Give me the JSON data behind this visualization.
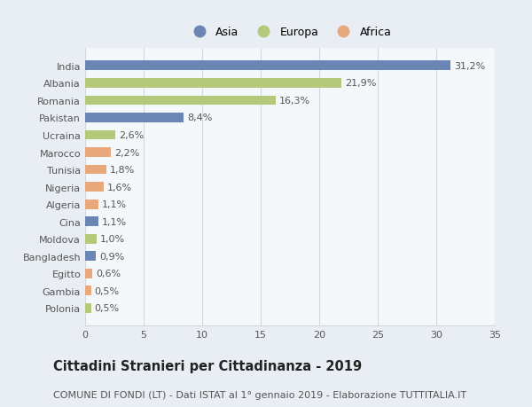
{
  "categories": [
    "Polonia",
    "Gambia",
    "Egitto",
    "Bangladesh",
    "Moldova",
    "Cina",
    "Algeria",
    "Nigeria",
    "Tunisia",
    "Marocco",
    "Ucraina",
    "Pakistan",
    "Romania",
    "Albania",
    "India"
  ],
  "values": [
    0.5,
    0.5,
    0.6,
    0.9,
    1.0,
    1.1,
    1.1,
    1.6,
    1.8,
    2.2,
    2.6,
    8.4,
    16.3,
    21.9,
    31.2
  ],
  "labels": [
    "0,5%",
    "0,5%",
    "0,6%",
    "0,9%",
    "1,0%",
    "1,1%",
    "1,1%",
    "1,6%",
    "1,8%",
    "2,2%",
    "2,6%",
    "8,4%",
    "16,3%",
    "21,9%",
    "31,2%"
  ],
  "continents": [
    "Europa",
    "Africa",
    "Africa",
    "Asia",
    "Europa",
    "Asia",
    "Africa",
    "Africa",
    "Africa",
    "Africa",
    "Europa",
    "Asia",
    "Europa",
    "Europa",
    "Asia"
  ],
  "colors": {
    "Asia": "#6b85b5",
    "Europa": "#b5c97a",
    "Africa": "#e8a87c"
  },
  "xlim": [
    0,
    35
  ],
  "xticks": [
    0,
    5,
    10,
    15,
    20,
    25,
    30,
    35
  ],
  "title": "Cittadini Stranieri per Cittadinanza - 2019",
  "subtitle": "COMUNE DI FONDI (LT) - Dati ISTAT al 1° gennaio 2019 - Elaborazione TUTTITALIA.IT",
  "background_color": "#e8eef4",
  "plot_background": "#f5f8fb",
  "grid_color": "#d0d8e0",
  "bar_height": 0.55,
  "title_fontsize": 10.5,
  "subtitle_fontsize": 8,
  "tick_fontsize": 8,
  "label_fontsize": 8,
  "legend_fontsize": 9
}
